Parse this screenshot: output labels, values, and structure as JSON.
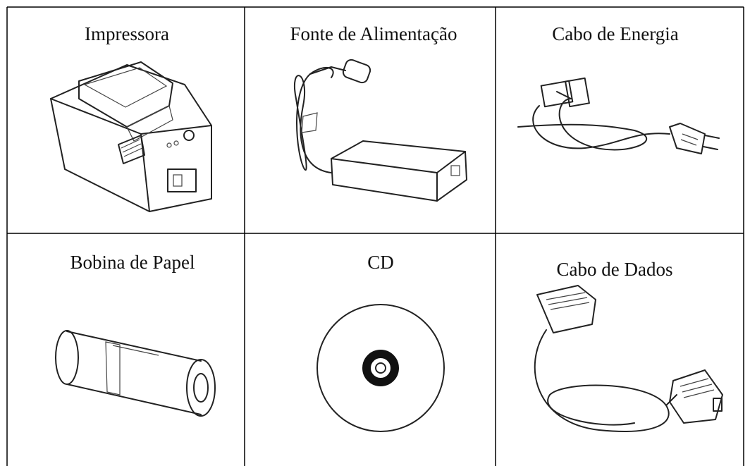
{
  "table": {
    "rows": [
      [
        "Impressora",
        "Fonte de Alimentação",
        "Cabo de Energia"
      ],
      [
        "Bobina de Papel",
        "CD",
        "Cabo de Dados"
      ]
    ]
  }
}
